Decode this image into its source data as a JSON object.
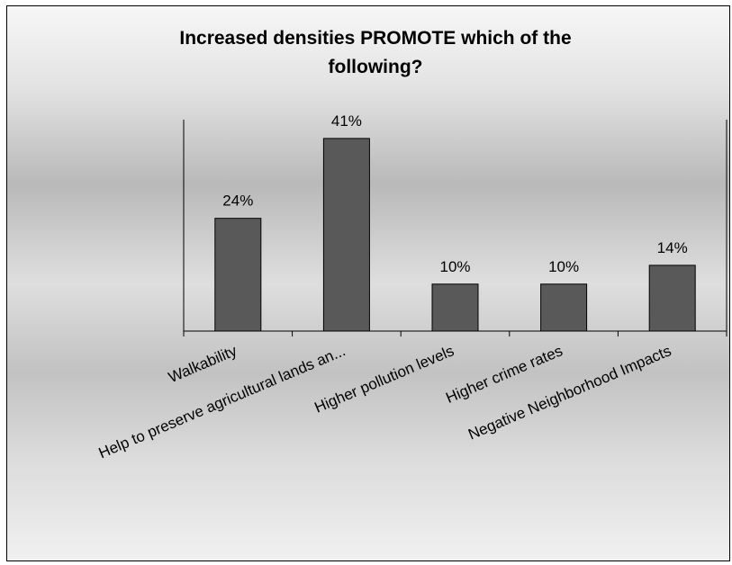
{
  "chart_data": {
    "type": "bar",
    "title_lines": [
      "Increased densities PROMOTE which of the",
      "following?"
    ],
    "categories": [
      "Walkability",
      "Help to preserve agricultural lands an...",
      "Higher pollution levels",
      "Higher crime rates",
      "Negative Neighborhood Impacts"
    ],
    "values": [
      24,
      41,
      10,
      10,
      14
    ],
    "value_labels": [
      "24%",
      "41%",
      "10%",
      "10%",
      "14%"
    ],
    "ylim": [
      0,
      45
    ],
    "grid": false,
    "legend": "none",
    "xlabel": "",
    "ylabel": ""
  },
  "colors": {
    "bar_fill": "#595959",
    "bar_stroke": "#000000",
    "axis": "#000000"
  }
}
